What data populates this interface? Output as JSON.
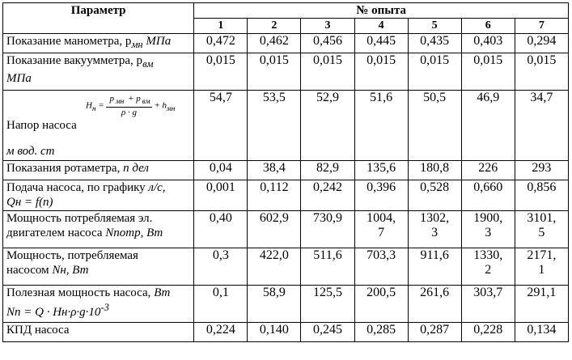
{
  "header": {
    "param": "Параметр",
    "experiment": "№ опыта",
    "numbers": [
      "1",
      "2",
      "3",
      "4",
      "5",
      "6",
      "7"
    ]
  },
  "rows": [
    {
      "label": "Показание манометра, p",
      "sub": "мн",
      "unit": " МПа",
      "values": [
        "0,472",
        "0,462",
        "0,456",
        "0,445",
        "0,435",
        "0,403",
        "0,294"
      ]
    },
    {
      "label": "Показание вакуумметра, p",
      "sub": "вм",
      "unit": "МПа",
      "values": [
        "0,015",
        "0,015",
        "0,015",
        "0,015",
        "0,015",
        "0,015",
        "0,015"
      ]
    },
    {
      "label": "Напор насоса",
      "formula": {
        "lhs": "H",
        "lhs_sub": "н",
        "num": "p",
        "num_sub1": "мн",
        "num_plus": " + p",
        "num_sub2": "вм",
        "den": "ρ · g",
        "tail": "+ h",
        "tail_sub": "мн"
      },
      "unit": "м вод. ст",
      "values": [
        "54,7",
        "53,5",
        "52,9",
        "51,6",
        "50,5",
        "46,9",
        "34,7"
      ]
    },
    {
      "label": "Показания  ротаметра,  ",
      "unit": "n дел",
      "values": [
        "0,04",
        "38,4",
        "82,9",
        "135,6",
        "180,8",
        "226",
        "293"
      ]
    },
    {
      "label": "Подача насоса, по графику ",
      "unit": "л/с,",
      "line2": "Qн = f(n)",
      "values": [
        "0,001",
        "0,112",
        "0,242",
        "0,396",
        "0,528",
        "0,660",
        "0,856"
      ]
    },
    {
      "label": "Мощность потребляемая эл.",
      "line2": "двигателем насоса ",
      "line2_italic": "Nпотр, Вт",
      "values": [
        "0,40",
        "602,9",
        "730,9",
        "1004,\n7",
        "1302,\n3",
        "1900,\n3",
        "3101,\n5"
      ]
    },
    {
      "label": "Мощность, потребляемая",
      "line2": "насосом ",
      "line2_italic": "Nн, Вт",
      "values": [
        "0,3",
        "422,0",
        "511,6",
        "703,3",
        "911,6",
        "1330,\n2",
        "2171,\n1"
      ]
    },
    {
      "label": "Полезная мощность насоса, ",
      "unit": "Вт",
      "line2_italic": "Nп  =  Q · Hн·ρ·g·10",
      "line2_sup": "-3",
      "values": [
        "0,1",
        "58,9",
        "125,5",
        "200,5",
        "261,6",
        "303,7",
        "291,1"
      ]
    },
    {
      "label": "КПД насоса",
      "values": [
        "0,224",
        "0,140",
        "0,245",
        "0,285",
        "0,287",
        "0,228",
        "0,134"
      ]
    }
  ]
}
